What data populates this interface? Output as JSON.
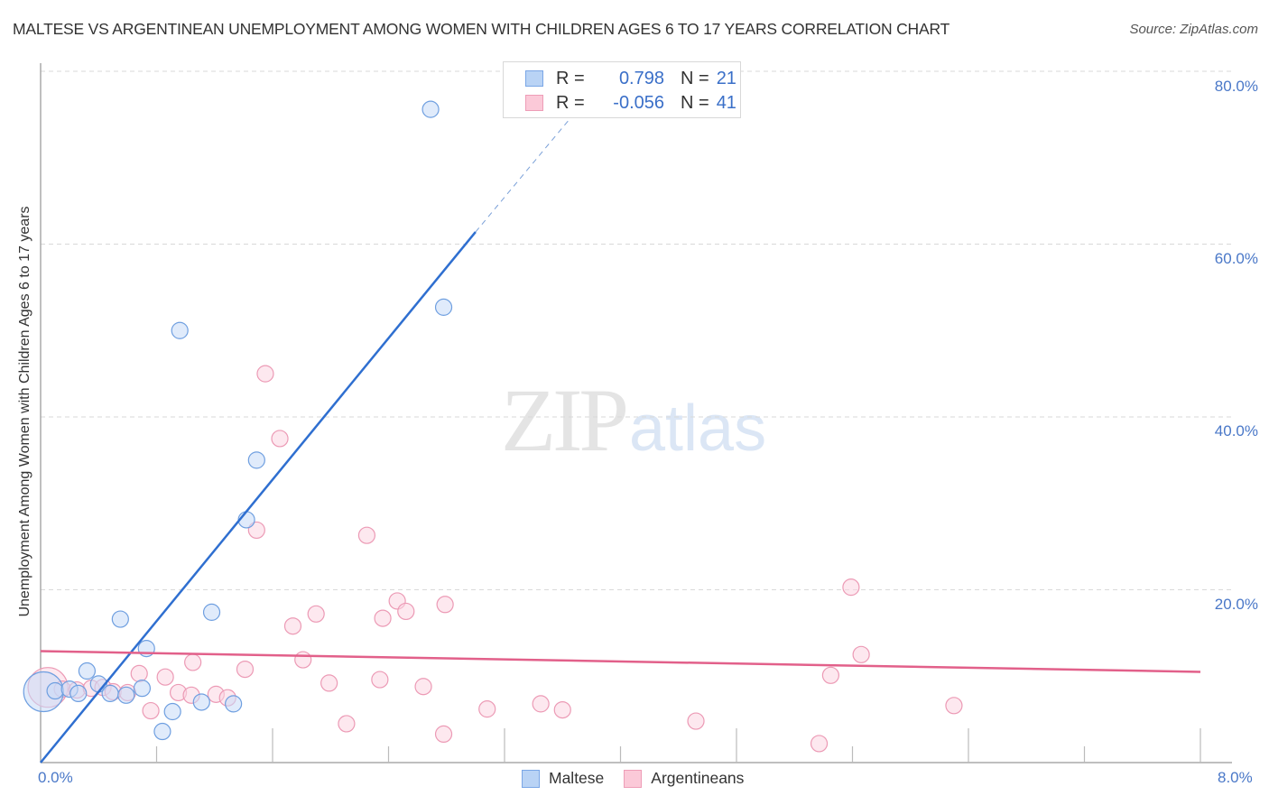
{
  "header": {
    "title": "MALTESE VS ARGENTINEAN UNEMPLOYMENT AMONG WOMEN WITH CHILDREN AGES 6 TO 17 YEARS CORRELATION CHART",
    "source": "Source: ZipAtlas.com"
  },
  "axes": {
    "ylabel": "Unemployment Among Women with Children Ages 6 to 17 years",
    "yticks": [
      "80.0%",
      "60.0%",
      "40.0%",
      "20.0%"
    ],
    "xticks": {
      "min": "0.0%",
      "max": "8.0%"
    }
  },
  "legend_stats": {
    "rows": [
      {
        "series": "Maltese",
        "r_label": "R =",
        "r_value": "0.798",
        "n_label": "N =",
        "n_value": "21",
        "fill": "#b9d3f5",
        "stroke": "#7aa6e6"
      },
      {
        "series": "Argentineans",
        "r_label": "R =",
        "r_value": "-0.056",
        "n_label": "N =",
        "n_value": "41",
        "fill": "#fbc9d8",
        "stroke": "#ee9db7"
      }
    ]
  },
  "legend_bottom": {
    "items": [
      {
        "label": "Maltese"
      },
      {
        "label": "Argentineans"
      }
    ]
  },
  "watermark": {
    "zip": "ZIP",
    "atlas": "atlas"
  },
  "colors": {
    "maltese_fill": "#c6dbf7",
    "maltese_stroke": "#6f9fe0",
    "maltese_line": "#2f6fd0",
    "argentine_fill": "#fbd5e1",
    "argentine_stroke": "#ec9ab5",
    "argentine_line": "#e2608a",
    "tick_text": "#4a78c8",
    "grid": "#d9d9d9"
  },
  "chart_data": {
    "type": "scatter",
    "title": "MALTESE VS ARGENTINEAN UNEMPLOYMENT AMONG WOMEN WITH CHILDREN AGES 6 TO 17 YEARS CORRELATION CHART",
    "xlabel": "",
    "ylabel": "Unemployment Among Women with Children Ages 6 to 17 years",
    "xlim": [
      0,
      8
    ],
    "ylim": [
      0,
      80
    ],
    "x_unit": "%",
    "y_unit": "%",
    "grid": {
      "horizontal": true,
      "style": "dashed",
      "at": [
        20,
        40,
        60,
        80
      ]
    },
    "legend_position": "bottom-center",
    "series": [
      {
        "name": "Maltese",
        "R": 0.798,
        "N": 21,
        "points": [
          {
            "x": 0.02,
            "y": 8.2,
            "size": "large"
          },
          {
            "x": 0.1,
            "y": 8.3
          },
          {
            "x": 0.2,
            "y": 8.5
          },
          {
            "x": 0.32,
            "y": 10.6
          },
          {
            "x": 0.4,
            "y": 9.1
          },
          {
            "x": 0.48,
            "y": 8.0
          },
          {
            "x": 0.55,
            "y": 16.6
          },
          {
            "x": 0.59,
            "y": 7.8
          },
          {
            "x": 0.7,
            "y": 8.6
          },
          {
            "x": 0.73,
            "y": 13.2
          },
          {
            "x": 0.84,
            "y": 3.6
          },
          {
            "x": 0.91,
            "y": 5.9
          },
          {
            "x": 0.96,
            "y": 50.0
          },
          {
            "x": 1.11,
            "y": 7.0
          },
          {
            "x": 1.18,
            "y": 17.4
          },
          {
            "x": 1.33,
            "y": 6.8
          },
          {
            "x": 1.42,
            "y": 28.1
          },
          {
            "x": 1.49,
            "y": 35.0
          },
          {
            "x": 2.69,
            "y": 75.6
          },
          {
            "x": 2.78,
            "y": 52.7
          },
          {
            "x": 0.26,
            "y": 8.0
          }
        ],
        "trendline": {
          "x0": 0.0,
          "y0": 0.0,
          "x1": 3.0,
          "y1": 61.4,
          "dashed_extension_to": {
            "x": 3.7,
            "y": 75.5
          }
        }
      },
      {
        "name": "Argentineans",
        "R": -0.056,
        "N": 41,
        "points": [
          {
            "x": 0.05,
            "y": 8.7,
            "size": "large"
          },
          {
            "x": 0.15,
            "y": 8.5
          },
          {
            "x": 0.25,
            "y": 8.4
          },
          {
            "x": 0.35,
            "y": 8.6
          },
          {
            "x": 0.43,
            "y": 8.7
          },
          {
            "x": 0.5,
            "y": 8.2
          },
          {
            "x": 0.6,
            "y": 8.1
          },
          {
            "x": 0.68,
            "y": 10.3
          },
          {
            "x": 0.76,
            "y": 6.0
          },
          {
            "x": 0.86,
            "y": 9.9
          },
          {
            "x": 0.95,
            "y": 8.1
          },
          {
            "x": 1.05,
            "y": 11.6
          },
          {
            "x": 1.04,
            "y": 7.8
          },
          {
            "x": 1.21,
            "y": 7.9
          },
          {
            "x": 1.29,
            "y": 7.5
          },
          {
            "x": 1.41,
            "y": 10.8
          },
          {
            "x": 1.49,
            "y": 26.9
          },
          {
            "x": 1.55,
            "y": 45.0
          },
          {
            "x": 1.65,
            "y": 37.5
          },
          {
            "x": 1.74,
            "y": 15.8
          },
          {
            "x": 1.81,
            "y": 11.9
          },
          {
            "x": 1.9,
            "y": 17.2
          },
          {
            "x": 1.99,
            "y": 9.2
          },
          {
            "x": 2.11,
            "y": 4.5
          },
          {
            "x": 2.25,
            "y": 26.3
          },
          {
            "x": 2.34,
            "y": 9.6
          },
          {
            "x": 2.36,
            "y": 16.7
          },
          {
            "x": 2.46,
            "y": 18.7
          },
          {
            "x": 2.52,
            "y": 17.5
          },
          {
            "x": 2.64,
            "y": 8.8
          },
          {
            "x": 2.79,
            "y": 18.3
          },
          {
            "x": 2.78,
            "y": 3.3
          },
          {
            "x": 3.08,
            "y": 6.2
          },
          {
            "x": 3.45,
            "y": 6.8
          },
          {
            "x": 3.6,
            "y": 6.1
          },
          {
            "x": 4.52,
            "y": 4.8
          },
          {
            "x": 5.37,
            "y": 2.2
          },
          {
            "x": 5.59,
            "y": 20.3
          },
          {
            "x": 5.45,
            "y": 10.1
          },
          {
            "x": 5.66,
            "y": 12.5
          },
          {
            "x": 6.3,
            "y": 6.6
          }
        ],
        "trendline": {
          "x0": 0.0,
          "y0": 12.9,
          "x1": 8.0,
          "y1": 10.5
        }
      }
    ]
  }
}
